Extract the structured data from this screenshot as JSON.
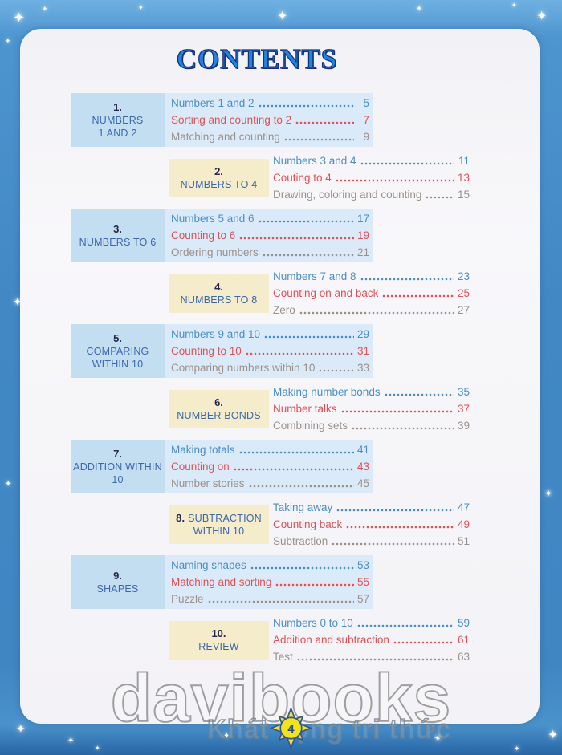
{
  "page": {
    "title": "CONTENTS",
    "page_number": "4"
  },
  "watermarks": {
    "brand": "davibooks",
    "tagline": "Khát vọng tri thức"
  },
  "colors": {
    "border_blue": "#4188c5",
    "label_box_blue": "#c4def1",
    "entries_bg_blue": "#dbeaf8",
    "label_box_cream": "#f4ecca",
    "title_blue": "#1e86dd",
    "entry_blue": "#4a8ec6",
    "entry_red": "#e15156",
    "entry_gray": "#9c918a",
    "sun_yellow": "#f0e41e",
    "sun_outline": "#33549b"
  },
  "chapters": [
    {
      "num": "1.",
      "num_inline": false,
      "theme": "blue",
      "name_lines": [
        "NUMBERS",
        "1 AND 2"
      ],
      "entries": [
        {
          "text": "Numbers 1 and 2",
          "page": "5",
          "style": "blue"
        },
        {
          "text": "Sorting and counting to 2",
          "page": "7",
          "style": "red"
        },
        {
          "text": "Matching and counting",
          "page": "9",
          "style": "gray"
        }
      ]
    },
    {
      "num": "2.",
      "num_inline": false,
      "theme": "cream",
      "name_lines": [
        "NUMBERS TO 4"
      ],
      "entries": [
        {
          "text": "Numbers 3 and 4",
          "page": "11",
          "style": "blue"
        },
        {
          "text": "Couting to 4",
          "page": "13",
          "style": "red"
        },
        {
          "text": "Drawing, coloring and counting",
          "page": "15",
          "style": "gray"
        }
      ]
    },
    {
      "num": "3.",
      "num_inline": false,
      "theme": "blue",
      "name_lines": [
        "NUMBERS TO 6"
      ],
      "entries": [
        {
          "text": "Numbers 5 and 6",
          "page": "17",
          "style": "blue"
        },
        {
          "text": "Counting to 6",
          "page": "19",
          "style": "red"
        },
        {
          "text": "Ordering numbers",
          "page": "21",
          "style": "gray"
        }
      ]
    },
    {
      "num": "4.",
      "num_inline": false,
      "theme": "cream",
      "name_lines": [
        "NUMBERS TO 8"
      ],
      "entries": [
        {
          "text": "Numbers 7 and 8",
          "page": "23",
          "style": "blue"
        },
        {
          "text": "Counting on and back",
          "page": "25",
          "style": "red"
        },
        {
          "text": "Zero",
          "page": "27",
          "style": "gray"
        }
      ]
    },
    {
      "num": "5.",
      "num_inline": false,
      "theme": "blue",
      "name_lines": [
        "COMPARING",
        "WITHIN 10"
      ],
      "entries": [
        {
          "text": "Numbers 9 and 10",
          "page": "29",
          "style": "blue"
        },
        {
          "text": "Counting to 10",
          "page": "31",
          "style": "red"
        },
        {
          "text": "Comparing numbers within 10",
          "page": "33",
          "style": "gray"
        }
      ]
    },
    {
      "num": "6.",
      "num_inline": false,
      "theme": "cream",
      "name_lines": [
        "NUMBER BONDS"
      ],
      "entries": [
        {
          "text": "Making number bonds",
          "page": "35",
          "style": "blue"
        },
        {
          "text": "Number talks",
          "page": "37",
          "style": "red"
        },
        {
          "text": "Combining sets",
          "page": "39",
          "style": "gray"
        }
      ]
    },
    {
      "num": "7.",
      "num_inline": false,
      "theme": "blue",
      "name_lines": [
        "ADDITION WITHIN",
        "10"
      ],
      "entries": [
        {
          "text": "Making totals",
          "page": "41",
          "style": "blue"
        },
        {
          "text": "Counting on",
          "page": "43",
          "style": "red"
        },
        {
          "text": "Number stories",
          "page": "45",
          "style": "gray"
        }
      ]
    },
    {
      "num": "8.",
      "num_inline": true,
      "theme": "cream",
      "name_lines": [
        "SUBTRACTION",
        "WITHIN 10"
      ],
      "entries": [
        {
          "text": "Taking away",
          "page": "47",
          "style": "blue"
        },
        {
          "text": "Counting back",
          "page": "49",
          "style": "red"
        },
        {
          "text": "Subtraction",
          "page": "51",
          "style": "gray"
        }
      ]
    },
    {
      "num": "9.",
      "num_inline": false,
      "theme": "blue",
      "name_lines": [
        "SHAPES"
      ],
      "entries": [
        {
          "text": "Naming shapes",
          "page": "53",
          "style": "blue"
        },
        {
          "text": "Matching and sorting",
          "page": "55",
          "style": "red"
        },
        {
          "text": "Puzzle",
          "page": "57",
          "style": "gray"
        }
      ]
    },
    {
      "num": "10.",
      "num_inline": false,
      "theme": "cream",
      "name_lines": [
        "REVIEW"
      ],
      "entries": [
        {
          "text": "Numbers 0 to 10",
          "page": "59",
          "style": "blue"
        },
        {
          "text": "Addition and subtraction",
          "page": "61",
          "style": "red"
        },
        {
          "text": "Test",
          "page": "63",
          "style": "gray"
        }
      ]
    }
  ]
}
